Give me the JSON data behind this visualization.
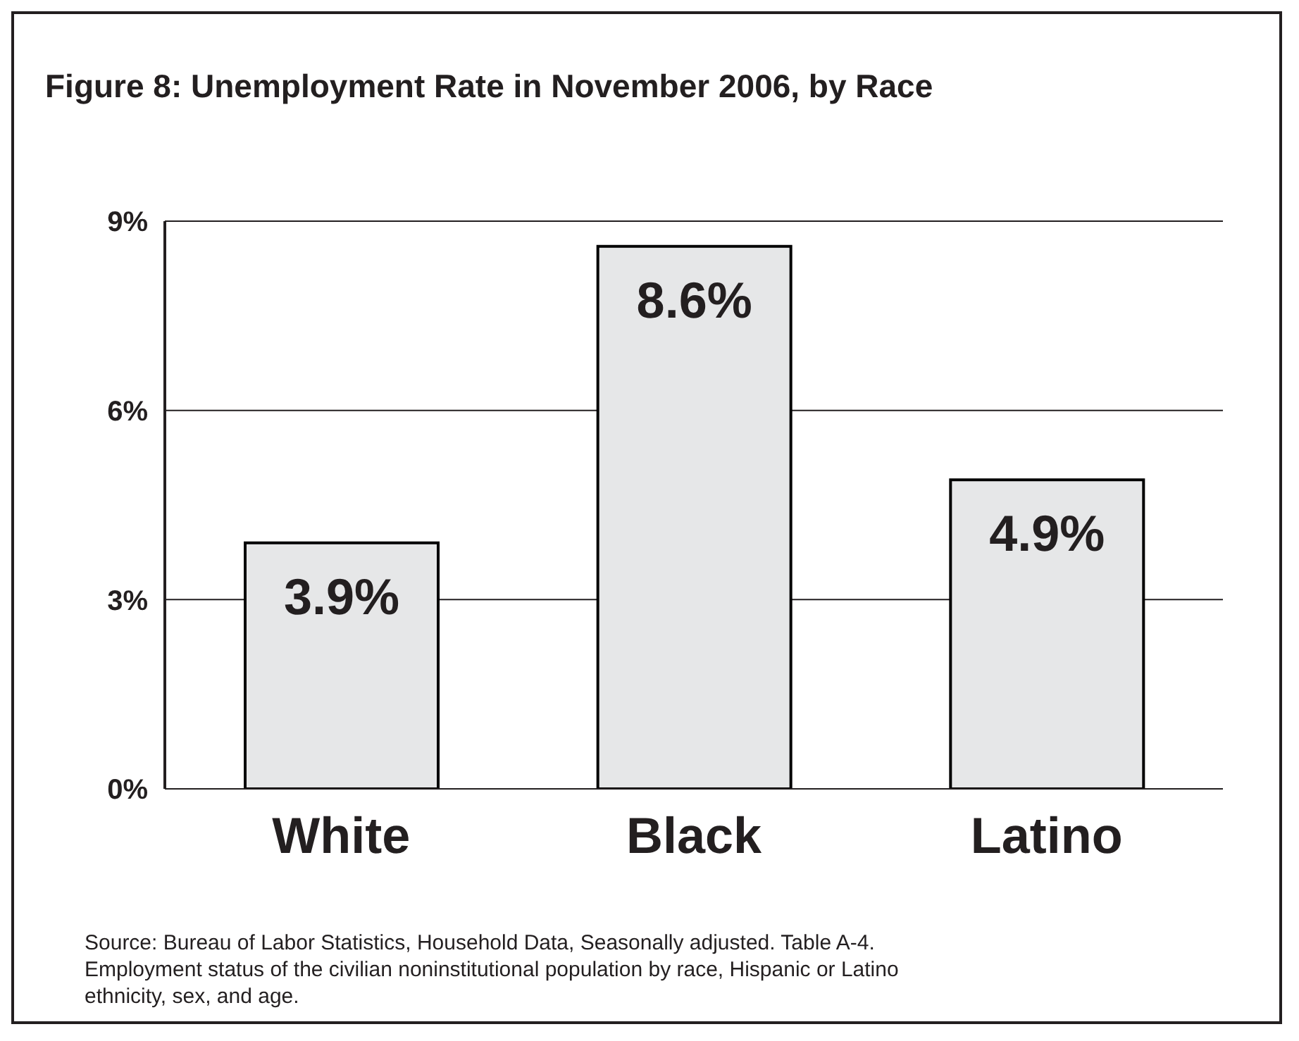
{
  "chart_data": {
    "type": "bar",
    "title": "Figure 8:  Unemployment Rate in November 2006, by Race",
    "categories": [
      "White",
      "Black",
      "Latino"
    ],
    "values": [
      3.9,
      8.6,
      4.9
    ],
    "value_labels": [
      "3.9%",
      "8.6%",
      "4.9%"
    ],
    "color": "#e6e7e8",
    "ylim": [
      0,
      9
    ],
    "yticks": [
      {
        "value": 0,
        "label": "0%"
      },
      {
        "value": 3,
        "label": "3%"
      },
      {
        "value": 6,
        "label": "6%"
      },
      {
        "value": 9,
        "label": "9%"
      }
    ],
    "grid": "y",
    "annotations": [
      "Source:  Bureau of Labor Statistics, Household Data, Seasonally adjusted. Table A-4. Employment status of the civilian noninstitutional population by race, Hispanic or Latino ethnicity, sex, and age."
    ]
  }
}
